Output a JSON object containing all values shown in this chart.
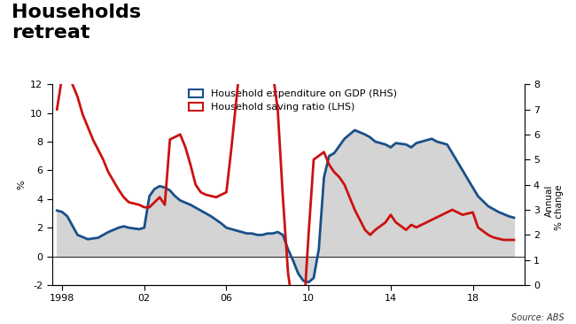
{
  "title": "Households\nretreat",
  "title_fontsize": 16,
  "lhs_label": "%",
  "rhs_label": "Annual\n% change",
  "source": "Source: ABS",
  "legend_entries": [
    "Household expenditure on GDP (RHS)",
    "Household saving ratio (LHS)"
  ],
  "blue_color": "#1a4f8a",
  "red_color": "#cc1111",
  "fill_color": "#d4d4d4",
  "bg_color": "#ffffff",
  "lhs_ylim": [
    -2,
    12
  ],
  "rhs_ylim": [
    0,
    8
  ],
  "lhs_yticks": [
    -2,
    0,
    2,
    4,
    6,
    8,
    10,
    12
  ],
  "rhs_yticks": [
    0,
    1,
    2,
    3,
    4,
    5,
    6,
    7,
    8
  ],
  "xticks": [
    1998,
    2002,
    2006,
    2010,
    2014,
    2018
  ],
  "xticklabels": [
    "1998",
    "02",
    "06",
    "10",
    "14",
    "18"
  ],
  "xlim": [
    1997.5,
    2020.5
  ],
  "blue_x": [
    1997.75,
    1998.0,
    1998.25,
    1998.75,
    1999.25,
    1999.75,
    2000.25,
    2000.75,
    2001.0,
    2001.25,
    2001.75,
    2002.0,
    2002.25,
    2002.5,
    2002.75,
    2003.0,
    2003.25,
    2003.5,
    2003.75,
    2004.25,
    2004.75,
    2005.25,
    2005.75,
    2006.0,
    2006.25,
    2006.5,
    2006.75,
    2007.0,
    2007.25,
    2007.5,
    2007.75,
    2008.0,
    2008.25,
    2008.5,
    2008.75,
    2009.0,
    2009.25,
    2009.5,
    2009.75,
    2010.0,
    2010.25,
    2010.5,
    2010.75,
    2011.0,
    2011.25,
    2011.75,
    2012.25,
    2012.75,
    2013.0,
    2013.25,
    2013.75,
    2014.0,
    2014.25,
    2014.75,
    2015.0,
    2015.25,
    2015.75,
    2016.0,
    2016.25,
    2016.75,
    2017.0,
    2017.5,
    2018.0,
    2018.25,
    2018.75,
    2019.25,
    2019.75,
    2020.0
  ],
  "blue_y": [
    3.2,
    3.1,
    2.8,
    1.5,
    1.2,
    1.3,
    1.7,
    2.0,
    2.1,
    2.0,
    1.9,
    2.0,
    4.2,
    4.7,
    4.9,
    4.8,
    4.6,
    4.2,
    3.9,
    3.6,
    3.2,
    2.8,
    2.3,
    2.0,
    1.9,
    1.8,
    1.7,
    1.6,
    1.6,
    1.5,
    1.5,
    1.6,
    1.6,
    1.7,
    1.5,
    0.5,
    -0.3,
    -1.2,
    -1.7,
    -1.8,
    -1.5,
    0.5,
    5.5,
    7.0,
    7.2,
    8.2,
    8.8,
    8.5,
    8.3,
    8.0,
    7.8,
    7.6,
    7.9,
    7.8,
    7.6,
    7.9,
    8.1,
    8.2,
    8.0,
    7.8,
    7.2,
    6.0,
    4.8,
    4.2,
    3.5,
    3.1,
    2.8,
    2.7
  ],
  "red_x": [
    1997.75,
    1998.0,
    1998.25,
    1998.75,
    1999.0,
    1999.5,
    2000.0,
    2000.25,
    2000.75,
    2001.0,
    2001.25,
    2001.75,
    2002.0,
    2002.25,
    2002.5,
    2002.75,
    2003.0,
    2003.25,
    2003.75,
    2004.0,
    2004.25,
    2004.5,
    2004.75,
    2005.0,
    2005.5,
    2005.75,
    2006.0,
    2006.25,
    2006.75,
    2007.0,
    2007.25,
    2007.5,
    2007.75,
    2008.0,
    2008.25,
    2008.5,
    2008.75,
    2009.0,
    2009.25,
    2009.5,
    2009.75,
    2010.0,
    2010.25,
    2010.75,
    2011.0,
    2011.25,
    2011.5,
    2011.75,
    2012.0,
    2012.25,
    2012.75,
    2013.0,
    2013.25,
    2013.75,
    2014.0,
    2014.25,
    2014.75,
    2015.0,
    2015.25,
    2015.75,
    2016.0,
    2016.5,
    2017.0,
    2017.5,
    2018.0,
    2018.25,
    2018.75,
    2019.0,
    2019.5,
    2020.0
  ],
  "red_y": [
    7.0,
    8.3,
    8.5,
    7.5,
    6.8,
    5.8,
    5.0,
    4.5,
    3.8,
    3.5,
    3.3,
    3.2,
    3.1,
    3.1,
    3.3,
    3.5,
    3.2,
    5.8,
    6.0,
    5.5,
    4.8,
    4.0,
    3.7,
    3.6,
    3.5,
    3.6,
    3.7,
    5.5,
    9.5,
    9.2,
    8.8,
    9.0,
    8.8,
    8.6,
    8.5,
    7.0,
    3.5,
    0.5,
    -1.0,
    -1.4,
    -1.3,
    2.0,
    5.0,
    5.3,
    4.8,
    4.5,
    4.3,
    4.0,
    3.5,
    3.0,
    2.2,
    2.0,
    2.2,
    2.5,
    2.8,
    2.5,
    2.2,
    2.4,
    2.3,
    2.5,
    2.6,
    2.8,
    3.0,
    2.8,
    2.9,
    2.3,
    2.0,
    1.9,
    1.8,
    1.8
  ]
}
